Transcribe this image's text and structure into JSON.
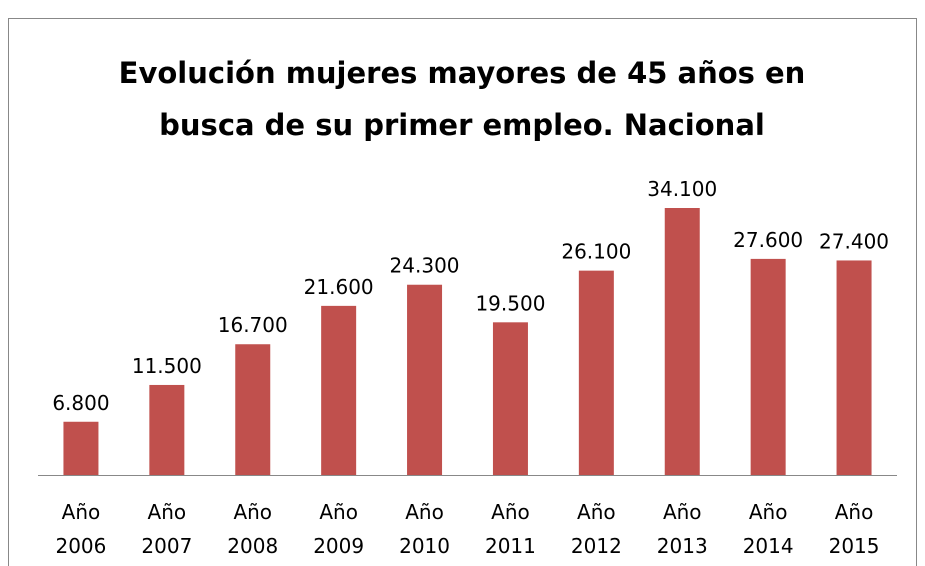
{
  "chart_data": {
    "type": "bar",
    "title": [
      "Evolución mujeres mayores de 45 años en",
      "busca de su primer empleo. Nacional"
    ],
    "categories": [
      "Año 2006",
      "Año 2007",
      "Año 2008",
      "Año 2009",
      "Año 2010",
      "Año 2011",
      "Año 2012",
      "Año 2013",
      "Año 2014",
      "Año 2015"
    ],
    "values": [
      6800,
      11500,
      16700,
      21600,
      24300,
      19500,
      26100,
      34100,
      27600,
      27400
    ],
    "value_labels": [
      "6.800",
      "11.500",
      "16.700",
      "21.600",
      "24.300",
      "19.500",
      "26.100",
      "34.100",
      "27.600",
      "27.400"
    ],
    "color": "#c0504d"
  }
}
